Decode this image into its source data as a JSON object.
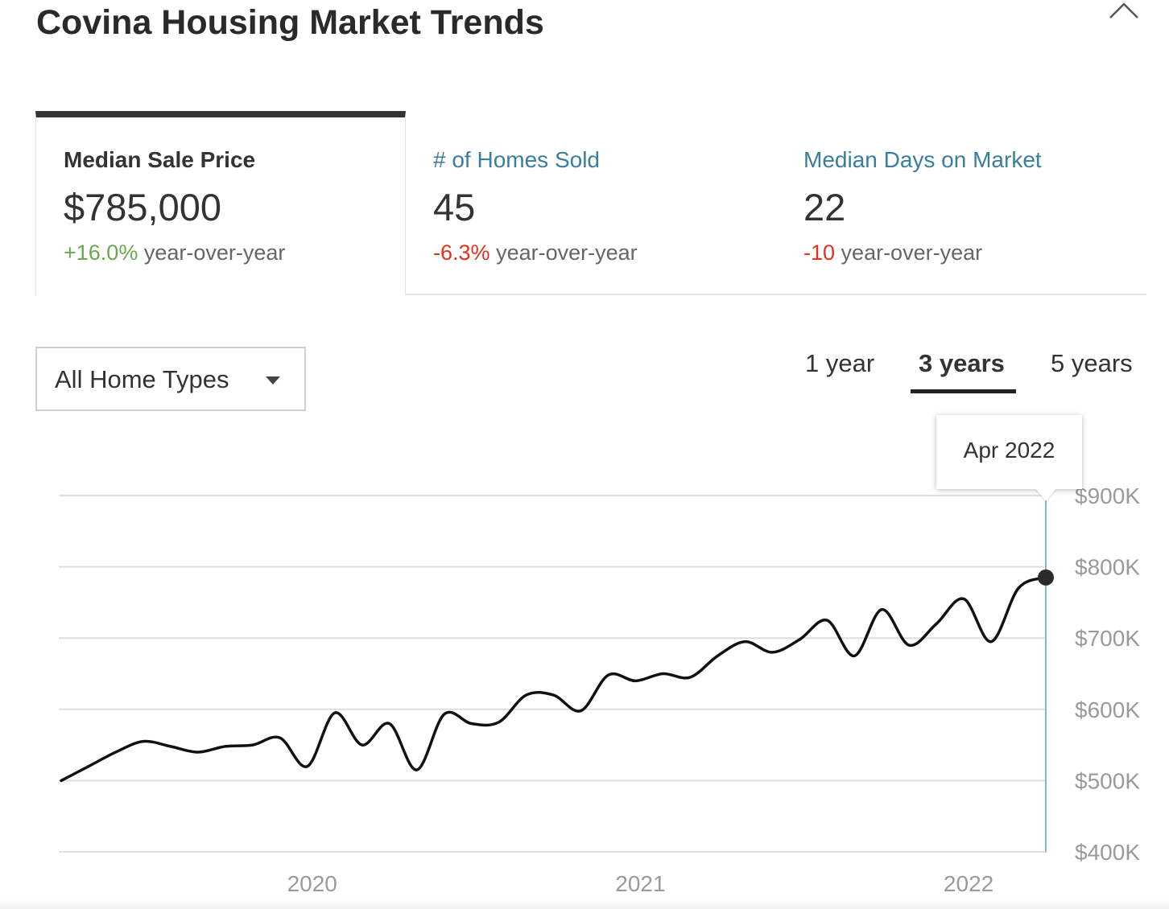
{
  "title": "Covina Housing Market Trends",
  "collapse_icon": "chevron-up-icon",
  "tabs": [
    {
      "label": "Median Sale Price",
      "value": "$785,000",
      "change": "+16.0%",
      "change_suffix": "year-over-year",
      "active": true
    },
    {
      "label": "# of Homes Sold",
      "value": "45",
      "change": "-6.3%",
      "change_suffix": "year-over-year",
      "active": false
    },
    {
      "label": "Median Days on Market",
      "value": "22",
      "change": "-10",
      "change_suffix": "year-over-year",
      "active": false
    }
  ],
  "filter": {
    "selected": "All Home Types",
    "icon": "caret-down-icon"
  },
  "ranges": [
    "1 year",
    "3 years",
    "5 years"
  ],
  "active_range": "3 years",
  "tooltip": {
    "label": "Apr 2022"
  },
  "colors": {
    "positive": "#6aa84f",
    "negative": "#e0321e",
    "link": "#3b7e9c",
    "line": "#111111",
    "hover_line": "#7fbcc9"
  },
  "chart_data": {
    "type": "line",
    "title": "",
    "xlabel": "",
    "ylabel": "",
    "x_ticks": [
      "2020",
      "2021",
      "2022"
    ],
    "y_ticks": [
      "$400K",
      "$500K",
      "$600K",
      "$700K",
      "$800K",
      "$900K"
    ],
    "ylim": [
      400000,
      900000
    ],
    "grid": true,
    "highlight_point": "Apr 2022",
    "series": [
      {
        "x": [
          "Apr 2019",
          "May 2019",
          "Jun 2019",
          "Jul 2019",
          "Aug 2019",
          "Sep 2019",
          "Oct 2019",
          "Nov 2019",
          "Dec 2019",
          "Jan 2020",
          "Feb 2020",
          "Mar 2020",
          "Apr 2020",
          "May 2020",
          "Jun 2020",
          "Jul 2020",
          "Aug 2020",
          "Sep 2020",
          "Oct 2020",
          "Nov 2020",
          "Dec 2020",
          "Jan 2021",
          "Feb 2021",
          "Mar 2021",
          "Apr 2021",
          "May 2021",
          "Jun 2021",
          "Jul 2021",
          "Aug 2021",
          "Sep 2021",
          "Oct 2021",
          "Nov 2021",
          "Dec 2021",
          "Jan 2022",
          "Feb 2022",
          "Mar 2022",
          "Apr 2022"
        ],
        "values": [
          500000,
          520000,
          540000,
          555000,
          548000,
          540000,
          548000,
          550000,
          560000,
          520000,
          595000,
          550000,
          580000,
          515000,
          593000,
          580000,
          582000,
          620000,
          620000,
          598000,
          648000,
          640000,
          650000,
          645000,
          675000,
          695000,
          680000,
          698000,
          725000,
          675000,
          740000,
          690000,
          720000,
          755000,
          695000,
          770000,
          785000
        ]
      }
    ]
  }
}
